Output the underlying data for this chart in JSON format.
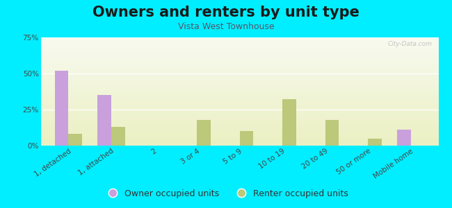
{
  "title": "Owners and renters by unit type",
  "subtitle": "Vista West Townhouse",
  "categories": [
    "1, detached",
    "1, attached",
    "2",
    "3 or 4",
    "5 to 9",
    "10 to 19",
    "20 to 49",
    "50 or more",
    "Mobile home"
  ],
  "owner_values": [
    52,
    35,
    0,
    0,
    0,
    0,
    0,
    0,
    11
  ],
  "renter_values": [
    8,
    13,
    0,
    18,
    10,
    32,
    18,
    5,
    0
  ],
  "owner_color": "#c9a0dc",
  "renter_color": "#bcc87a",
  "background_outer": "#00eeff",
  "ylim": [
    0,
    75
  ],
  "yticks": [
    0,
    25,
    50,
    75
  ],
  "ytick_labels": [
    "0%",
    "25%",
    "50%",
    "75%"
  ],
  "bar_width": 0.32,
  "title_fontsize": 15,
  "subtitle_fontsize": 9,
  "legend_fontsize": 9,
  "tick_fontsize": 7.5,
  "watermark": "City-Data.com"
}
